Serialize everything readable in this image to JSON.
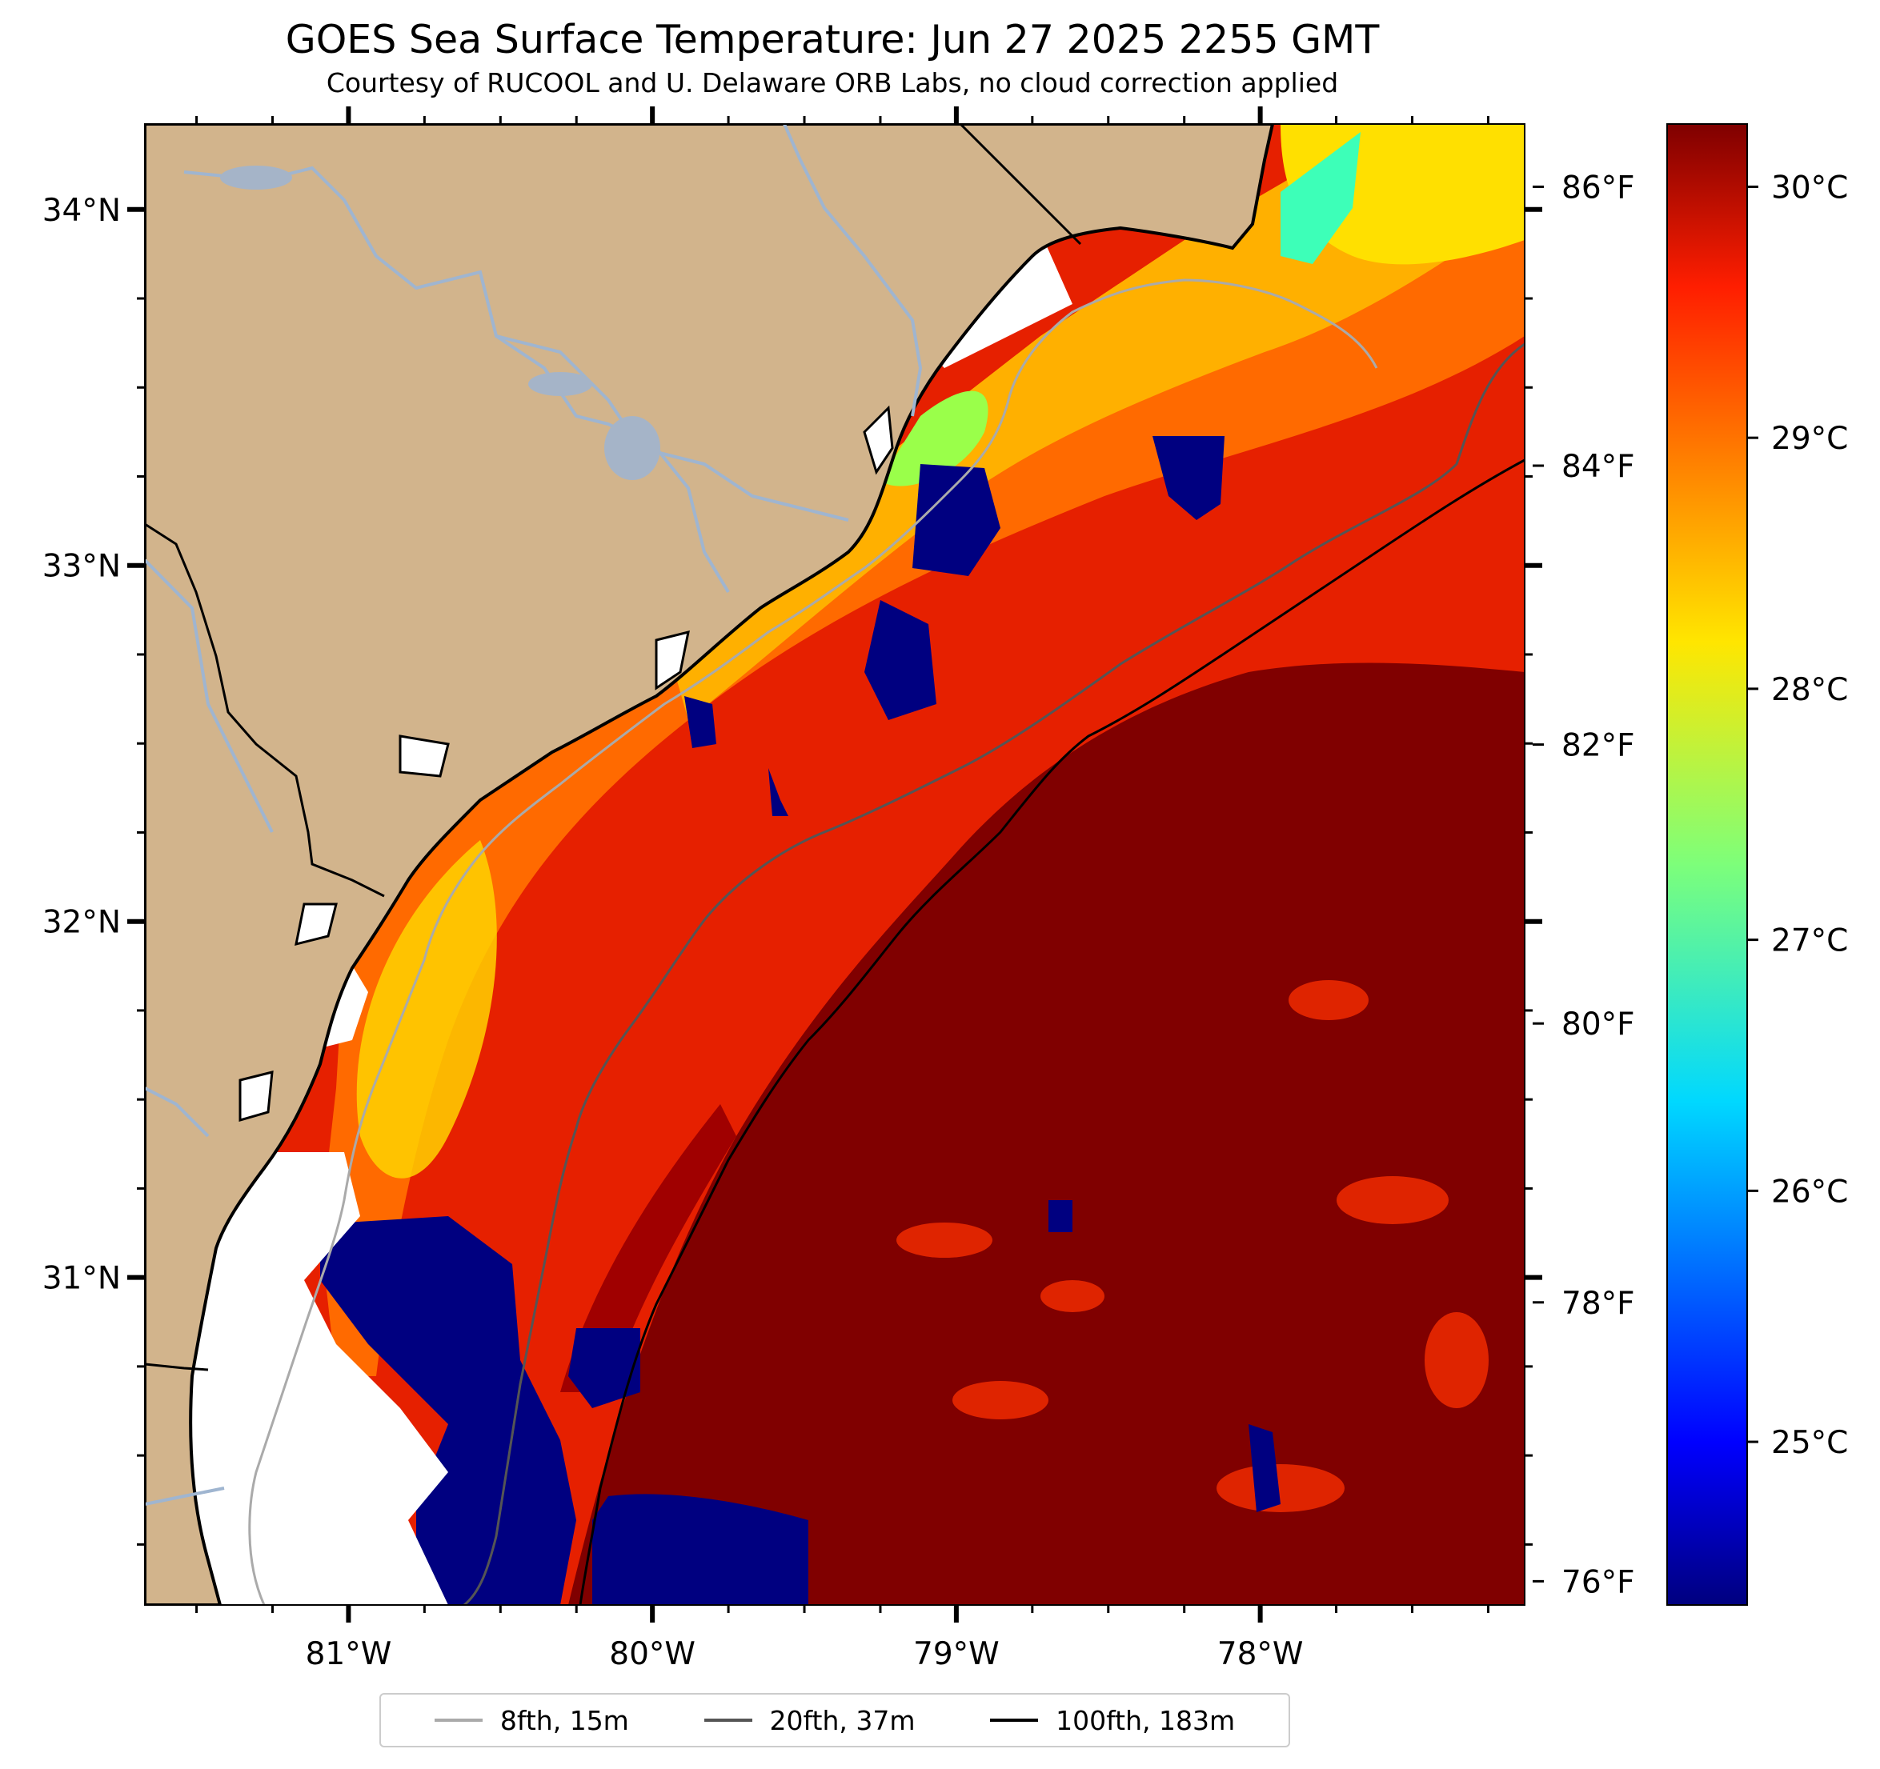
{
  "title": "GOES Sea Surface Temperature: Jun 27 2025 2255 GMT",
  "subtitle": "Courtesy of RUCOOL and U. Delaware ORB Labs, no cloud correction applied",
  "map": {
    "lon_range": [
      -81.67,
      -77.13
    ],
    "lat_range": [
      30.08,
      34.24
    ],
    "lat_labels": [
      "34°N",
      "33°N",
      "32°N",
      "31°N"
    ],
    "lon_labels": [
      "81°W",
      "80°W",
      "79°W",
      "78°W"
    ],
    "land_color": "#d2b48c",
    "river_color": "#9fb5d0",
    "cloud_mask_color": "#ffffff"
  },
  "colorbar": {
    "celsius_labels": [
      "30°C",
      "29°C",
      "28°C",
      "27°C",
      "26°C",
      "25°C"
    ],
    "celsius_values": [
      30,
      29,
      28,
      27,
      26,
      25
    ],
    "fahrenheit_labels": [
      "86°F",
      "84°F",
      "82°F",
      "80°F",
      "78°F",
      "76°F"
    ],
    "fahrenheit_values": [
      86,
      84,
      82,
      80,
      78,
      76
    ],
    "range_c": [
      24.35,
      30.25
    ],
    "colormap": "jet"
  },
  "legend": {
    "items": [
      {
        "label": "8fth, 15m",
        "color": "#aaaaaa"
      },
      {
        "label": "20fth, 37m",
        "color": "#555555"
      },
      {
        "label": "100fth, 183m",
        "color": "#000000"
      }
    ]
  }
}
